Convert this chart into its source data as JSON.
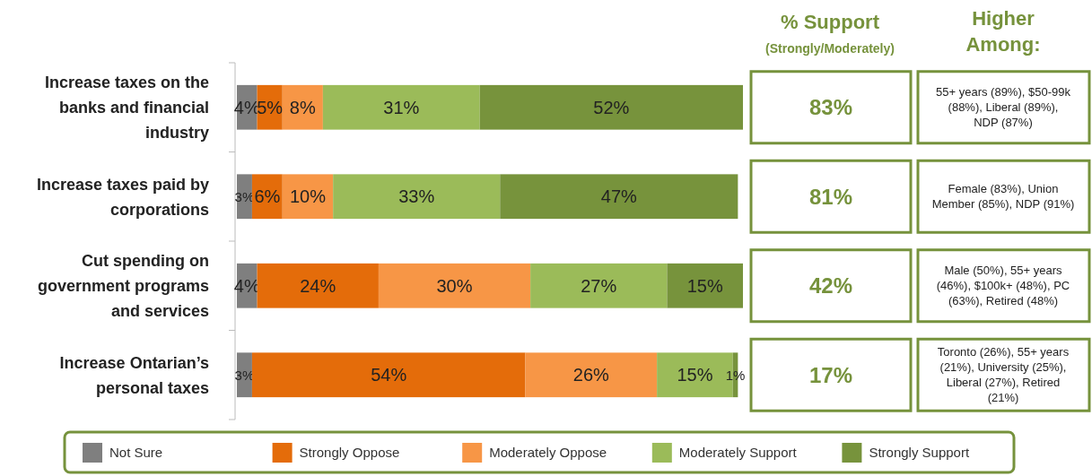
{
  "chart_data": {
    "type": "bar",
    "orientation": "horizontal",
    "stacked": true,
    "legend": "bottom",
    "xlim": [
      0,
      100
    ],
    "categories": [
      "Increase taxes on the banks and financial industry",
      "Increase taxes paid by corporations",
      "Cut spending on government programs and services",
      "Increase Ontarian’s personal taxes"
    ],
    "series": [
      {
        "name": "Not Sure",
        "color": "#7f7f7f",
        "values": [
          4,
          3,
          4,
          3
        ],
        "value_labels": [
          "4%",
          "3%",
          "4%",
          "3%"
        ]
      },
      {
        "name": "Strongly Oppose",
        "color": "#e46c0a",
        "values": [
          5,
          6,
          24,
          54
        ],
        "value_labels": [
          "5%",
          "6%",
          "24%",
          "54%"
        ]
      },
      {
        "name": "Moderately Oppose",
        "color": "#f79646",
        "values": [
          8,
          10,
          30,
          26
        ],
        "value_labels": [
          "8%",
          "10%",
          "30%",
          "26%"
        ]
      },
      {
        "name": "Moderately Support",
        "color": "#9bbb59",
        "values": [
          31,
          33,
          27,
          15
        ],
        "value_labels": [
          "31%",
          "33%",
          "27%",
          "15%"
        ]
      },
      {
        "name": "Strongly Support",
        "color": "#77933c",
        "values": [
          52,
          47,
          15,
          1
        ],
        "value_labels": [
          "52%",
          "47%",
          "15%",
          "1%"
        ]
      }
    ],
    "annotations": [
      "% Support",
      "(Strongly/Moderately)",
      "Higher Among:",
      "83%",
      "55+ years (89%), $50-99k (88%), Liberal (89%), NDP (87%)",
      "81%",
      "Female (83%), Union Member (85%), NDP (91%)",
      "42%",
      "Male (50%), 55+ years (46%), $100k+ (48%), PC (63%), Retired (48%)",
      "17%",
      "Toronto (26%), 55+ years (21%), University (25%), Liberal (27%), Retired (21%)"
    ]
  }
}
